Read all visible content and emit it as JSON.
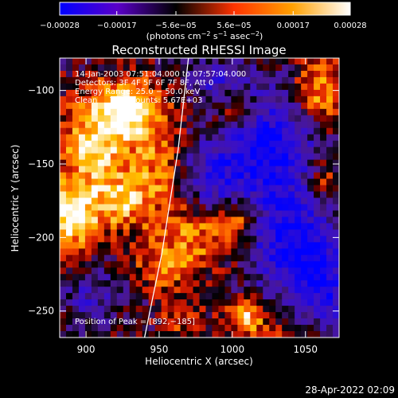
{
  "chart_data": {
    "type": "heatmap",
    "title": "Reconstructed RHESSI Image",
    "xlabel": "Heliocentric X (arcsec)",
    "ylabel": "Heliocentric Y (arcsec)",
    "xlim": [
      882,
      1073
    ],
    "ylim": [
      -268,
      -78
    ],
    "x_ticks": [
      900,
      950,
      1000,
      1050
    ],
    "x_tick_labels": [
      "900",
      "950",
      "1000",
      "1050"
    ],
    "y_ticks": [
      -100,
      -150,
      -200,
      -250
    ],
    "y_tick_labels": [
      "−100",
      "−150",
      "−200",
      "−250"
    ],
    "colorbar": {
      "ticks": [
        -0.00028,
        -0.00017,
        -5.6e-05,
        5.6e-05,
        0.00017,
        0.00028
      ],
      "tick_labels": [
        "−0.00028",
        "−0.00017",
        "−5.6e−05",
        "5.6e−05",
        "0.00017",
        "0.00028"
      ],
      "range": [
        -0.00028,
        0.00028
      ],
      "colors": [
        "#0000ff",
        "#5a00c8",
        "#000000",
        "#ff3300",
        "#ffa000",
        "#ffffff"
      ],
      "units_main": "(photons cm",
      "units_exp1": "−2",
      "units_mid": " s",
      "units_exp2": "−1",
      "units_end": " asec",
      "units_exp3": "−2",
      "units_close": ")"
    },
    "annotations": [
      "14-Jan-2003 07:51:04.000 to 07:57:04.000",
      "Detectors: 3F 4F 5F 6F 7F 8F, Att 0",
      "Energy Range: 25.0 − 50.0 keV",
      "Clean     Total counts: 5.67E+03"
    ],
    "peak_label": "Position of Peak = [892,−185]",
    "peak": [
      892,
      -185
    ],
    "limb_curve": [
      [
        940,
        -268
      ],
      [
        952,
        -210
      ],
      [
        963,
        -140
      ],
      [
        970,
        -78
      ]
    ],
    "footer": "28-Apr-2022 02:09",
    "blobs": [
      {
        "x": 928,
        "y": -112,
        "sx": 16,
        "sy": 14,
        "a": 1.0
      },
      {
        "x": 906,
        "y": -138,
        "sx": 18,
        "sy": 20,
        "a": 0.8
      },
      {
        "x": 890,
        "y": -185,
        "sx": 14,
        "sy": 16,
        "a": 1.0
      },
      {
        "x": 925,
        "y": -175,
        "sx": 14,
        "sy": 14,
        "a": 0.65
      },
      {
        "x": 950,
        "y": -150,
        "sx": 12,
        "sy": 22,
        "a": 0.5
      },
      {
        "x": 975,
        "y": -200,
        "sx": 22,
        "sy": 16,
        "a": 0.6
      },
      {
        "x": 952,
        "y": -222,
        "sx": 12,
        "sy": 10,
        "a": 0.5
      },
      {
        "x": 1010,
        "y": -255,
        "sx": 10,
        "sy": 8,
        "a": 0.85
      },
      {
        "x": 1005,
        "y": -188,
        "sx": 10,
        "sy": 10,
        "a": 0.55
      },
      {
        "x": 1060,
        "y": -100,
        "sx": 12,
        "sy": 18,
        "a": 0.75
      },
      {
        "x": 1062,
        "y": -160,
        "sx": 8,
        "sy": 10,
        "a": 0.5
      },
      {
        "x": 1000,
        "y": -112,
        "sx": 12,
        "sy": 10,
        "a": 0.5
      },
      {
        "x": 965,
        "y": -255,
        "sx": 10,
        "sy": 8,
        "a": 0.4
      },
      {
        "x": 1040,
        "y": -265,
        "sx": 10,
        "sy": 6,
        "a": 0.35
      }
    ],
    "neg_blobs": [
      {
        "x": 1025,
        "y": -140,
        "sx": 24,
        "sy": 28,
        "a": 0.95
      },
      {
        "x": 1040,
        "y": -205,
        "sx": 22,
        "sy": 22,
        "a": 0.9
      },
      {
        "x": 985,
        "y": -160,
        "sx": 14,
        "sy": 16,
        "a": 0.55
      },
      {
        "x": 1063,
        "y": -235,
        "sx": 14,
        "sy": 18,
        "a": 0.7
      },
      {
        "x": 905,
        "y": -240,
        "sx": 14,
        "sy": 12,
        "a": 0.45
      },
      {
        "x": 990,
        "y": -95,
        "sx": 14,
        "sy": 10,
        "a": 0.5
      }
    ]
  }
}
